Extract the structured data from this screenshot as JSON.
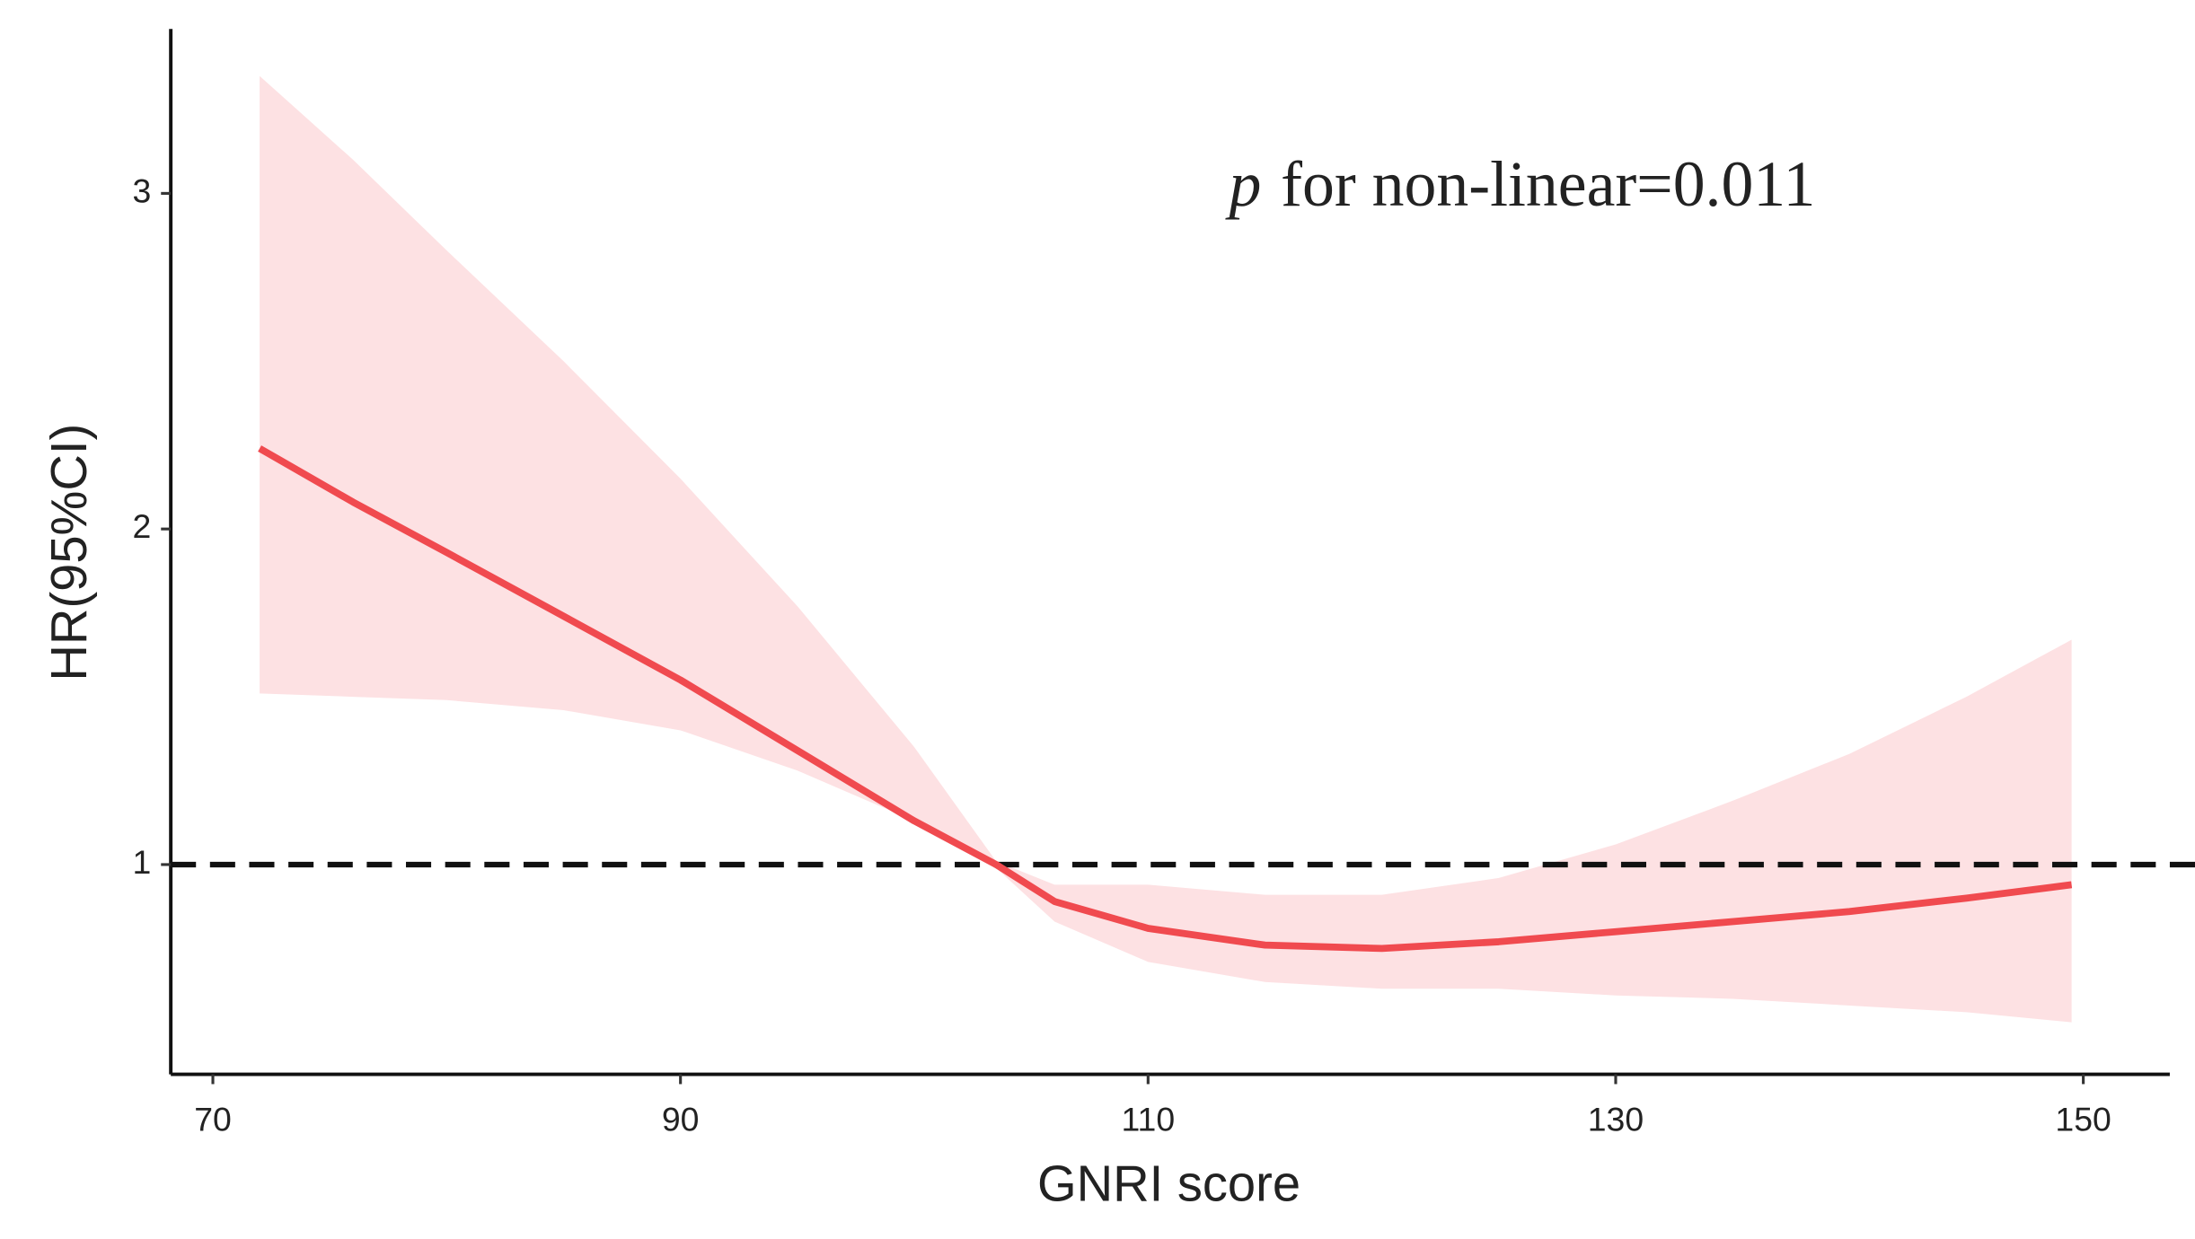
{
  "chart_data": {
    "type": "line",
    "xlabel": "GNRI score",
    "ylabel": "HR(95%CI)",
    "annotation": {
      "italic": "p",
      "text": "for non-linear=0.011"
    },
    "x": [
      72,
      76,
      80,
      85,
      90,
      95,
      100,
      103.5,
      106,
      110,
      115,
      120,
      125,
      130,
      135,
      140,
      145,
      149.5
    ],
    "values": [
      2.24,
      2.08,
      1.93,
      1.74,
      1.55,
      1.34,
      1.13,
      1.0,
      0.89,
      0.81,
      0.76,
      0.75,
      0.77,
      0.8,
      0.83,
      0.86,
      0.9,
      0.94
    ],
    "upper": [
      3.35,
      3.1,
      2.83,
      2.5,
      2.15,
      1.77,
      1.35,
      1.01,
      0.94,
      0.94,
      0.91,
      0.91,
      0.96,
      1.06,
      1.19,
      1.33,
      1.5,
      1.67
    ],
    "lower": [
      1.51,
      1.5,
      1.49,
      1.46,
      1.4,
      1.28,
      1.13,
      0.99,
      0.83,
      0.71,
      0.65,
      0.63,
      0.63,
      0.61,
      0.6,
      0.58,
      0.56,
      0.53
    ],
    "color": "#f04a4f",
    "band_color": "#fde1e3",
    "reference_line": 1,
    "xlim": [
      68.2,
      153.7
    ],
    "ylim": [
      0.375,
      3.49
    ],
    "xticks": [
      70,
      90,
      110,
      130,
      150
    ],
    "yticks": [
      1,
      2,
      3
    ]
  }
}
